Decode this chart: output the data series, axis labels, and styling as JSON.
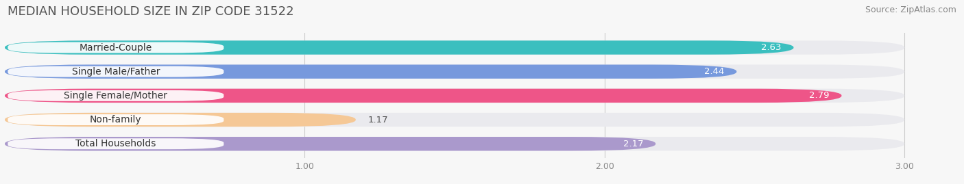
{
  "title": "MEDIAN HOUSEHOLD SIZE IN ZIP CODE 31522",
  "source": "Source: ZipAtlas.com",
  "categories": [
    "Married-Couple",
    "Single Male/Father",
    "Single Female/Mother",
    "Non-family",
    "Total Households"
  ],
  "values": [
    2.63,
    2.44,
    2.79,
    1.17,
    2.17
  ],
  "bar_colors": [
    "#3bbfbf",
    "#7799dd",
    "#ee5588",
    "#f5c896",
    "#aa99cc"
  ],
  "bar_bg_color": "#eaeaee",
  "xlim": [
    0.0,
    3.15
  ],
  "xstart": 0.0,
  "xend": 3.0,
  "xticks": [
    1.0,
    2.0,
    3.0
  ],
  "xtick_labels": [
    "1.00",
    "2.00",
    "3.00"
  ],
  "title_fontsize": 13,
  "source_fontsize": 9,
  "label_fontsize": 10,
  "value_fontsize": 9.5,
  "background_color": "#f7f7f7",
  "bar_height": 0.58,
  "label_bg_color": "#ffffff",
  "value_label_color": "#ffffff",
  "grid_color": "#cccccc",
  "title_color": "#555555",
  "source_color": "#888888",
  "tick_color": "#888888"
}
